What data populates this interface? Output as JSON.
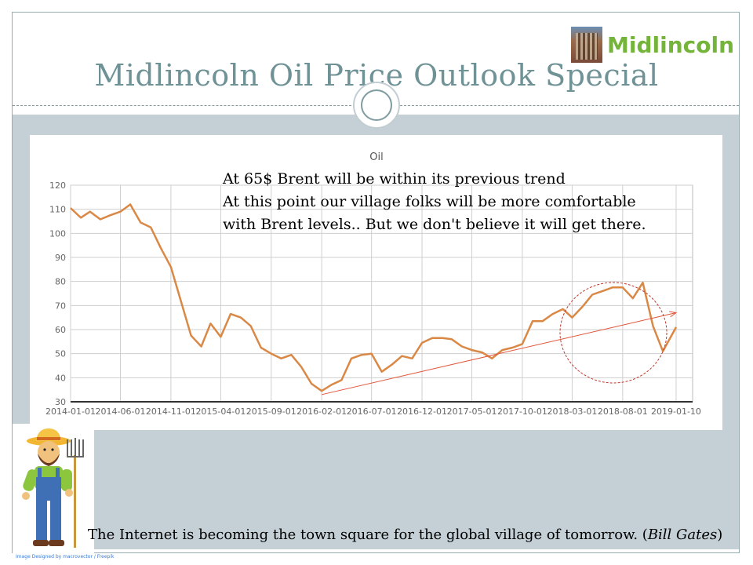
{
  "slide": {
    "title": "Midlincoln Oil Price Outlook Special",
    "logo_text": "Midlincoln",
    "quote_text": "The Internet is becoming the town square for the global village of tomorrow. (",
    "quote_author": "Bill Gates",
    "quote_close": ")",
    "credit": "Image Designed by macrovector / Freepik",
    "colors": {
      "title": "#6f9296",
      "band": "#c4d0d6",
      "logo": "#74b43a",
      "line": "#d98845",
      "trend": "#e2553a"
    }
  },
  "annotation": {
    "lines": [
      "At 65$ Brent will be within its previous trend",
      "At this point our village folks will be more comfortable",
      "with Brent levels.. But we don't believe it will get there."
    ]
  },
  "chart_data": {
    "type": "line",
    "title": "Oil",
    "xlabel": "",
    "ylabel": "",
    "ylim": [
      30,
      120
    ],
    "yticks": [
      30,
      40,
      50,
      60,
      70,
      80,
      90,
      100,
      110,
      120
    ],
    "xtick_labels": [
      "2014-01-01",
      "2014-06-01",
      "2014-11-01",
      "2015-04-01",
      "2015-09-01",
      "2016-02-01",
      "2016-07-01",
      "2016-12-01",
      "2017-05-01",
      "2017-10-01",
      "2018-03-01",
      "2018-08-01",
      "2019-01-10"
    ],
    "grid": true,
    "series": [
      {
        "values": [
          {
            "x": "2014-01-01",
            "y": 110.5
          },
          {
            "x": "2014-02-01",
            "y": 106.5
          },
          {
            "x": "2014-03-01",
            "y": 109
          },
          {
            "x": "2014-04-01",
            "y": 105.8
          },
          {
            "x": "2014-05-01",
            "y": 107.5
          },
          {
            "x": "2014-06-01",
            "y": 109
          },
          {
            "x": "2014-07-01",
            "y": 112
          },
          {
            "x": "2014-08-01",
            "y": 104.5
          },
          {
            "x": "2014-09-01",
            "y": 102.5
          },
          {
            "x": "2014-10-01",
            "y": 94
          },
          {
            "x": "2014-11-01",
            "y": 86
          },
          {
            "x": "2014-12-01",
            "y": 72
          },
          {
            "x": "2015-01-01",
            "y": 57.5
          },
          {
            "x": "2015-02-01",
            "y": 53
          },
          {
            "x": "2015-03-01",
            "y": 62.5
          },
          {
            "x": "2015-04-01",
            "y": 57
          },
          {
            "x": "2015-05-01",
            "y": 66.5
          },
          {
            "x": "2015-06-01",
            "y": 65
          },
          {
            "x": "2015-07-01",
            "y": 61.5
          },
          {
            "x": "2015-08-01",
            "y": 52.5
          },
          {
            "x": "2015-09-01",
            "y": 50
          },
          {
            "x": "2015-10-01",
            "y": 48
          },
          {
            "x": "2015-11-01",
            "y": 49.5
          },
          {
            "x": "2015-12-01",
            "y": 44.5
          },
          {
            "x": "2016-01-01",
            "y": 37.5
          },
          {
            "x": "2016-02-01",
            "y": 34.5
          },
          {
            "x": "2016-03-01",
            "y": 37
          },
          {
            "x": "2016-04-01",
            "y": 39
          },
          {
            "x": "2016-05-01",
            "y": 48
          },
          {
            "x": "2016-06-01",
            "y": 49.5
          },
          {
            "x": "2016-07-01",
            "y": 50
          },
          {
            "x": "2016-08-01",
            "y": 42.5
          },
          {
            "x": "2016-09-01",
            "y": 45.5
          },
          {
            "x": "2016-10-01",
            "y": 49
          },
          {
            "x": "2016-11-01",
            "y": 48
          },
          {
            "x": "2016-12-01",
            "y": 54.5
          },
          {
            "x": "2017-01-01",
            "y": 56.5
          },
          {
            "x": "2017-02-01",
            "y": 56.5
          },
          {
            "x": "2017-03-01",
            "y": 56
          },
          {
            "x": "2017-04-01",
            "y": 53
          },
          {
            "x": "2017-05-01",
            "y": 51.5
          },
          {
            "x": "2017-06-01",
            "y": 50.5
          },
          {
            "x": "2017-07-01",
            "y": 48
          },
          {
            "x": "2017-08-01",
            "y": 51.5
          },
          {
            "x": "2017-09-01",
            "y": 52.5
          },
          {
            "x": "2017-10-01",
            "y": 54
          },
          {
            "x": "2017-11-01",
            "y": 63.5
          },
          {
            "x": "2017-12-01",
            "y": 63.5
          },
          {
            "x": "2018-01-01",
            "y": 66.5
          },
          {
            "x": "2018-02-01",
            "y": 68.5
          },
          {
            "x": "2018-03-01",
            "y": 65
          },
          {
            "x": "2018-04-01",
            "y": 69.5
          },
          {
            "x": "2018-05-01",
            "y": 74.5
          },
          {
            "x": "2018-06-01",
            "y": 76
          },
          {
            "x": "2018-07-01",
            "y": 77.5
          },
          {
            "x": "2018-08-01",
            "y": 77.5
          },
          {
            "x": "2018-09-01",
            "y": 73
          },
          {
            "x": "2018-10-01",
            "y": 79.5
          },
          {
            "x": "2018-11-01",
            "y": 61.5
          },
          {
            "x": "2018-12-01",
            "y": 51
          },
          {
            "x": "2019-01-10",
            "y": 61
          }
        ]
      }
    ],
    "trend_line": {
      "from": {
        "x": "2016-02-01",
        "y": 33
      },
      "to": {
        "x": "2019-01-10",
        "y": 67
      }
    }
  }
}
